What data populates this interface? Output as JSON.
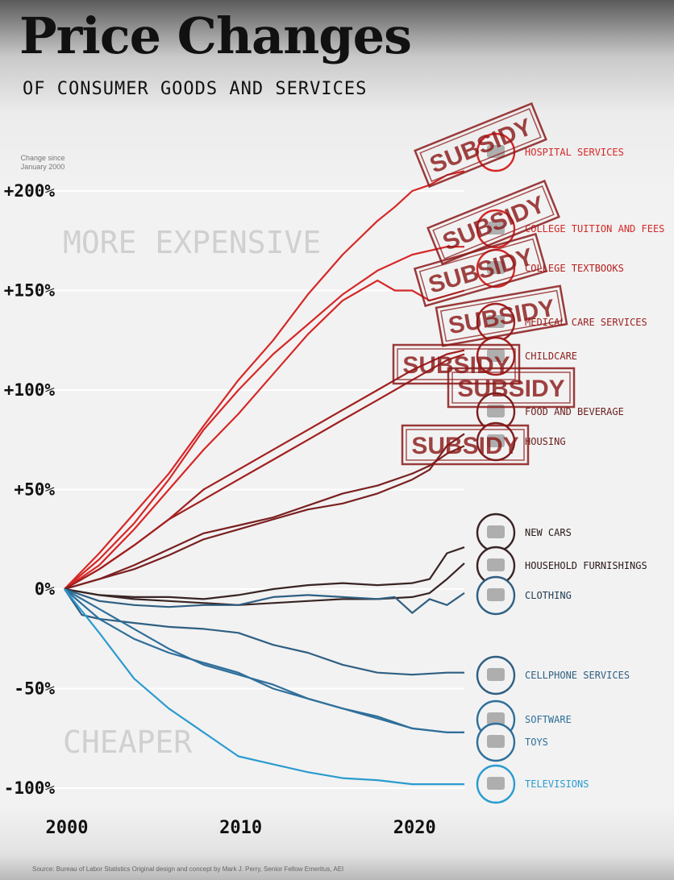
{
  "header": {
    "title": "Price Changes",
    "subtitle": "OF CONSUMER GOODS AND SERVICES",
    "axis_note": "Change since January 2000"
  },
  "footer": {
    "source": "Source: Bureau of Labor Statistics     Original design and concept by Mark J. Perry, Senior Fellow Emeritus, AEI"
  },
  "colors": {
    "hot": "#d62828",
    "warm": "#8b1e1e",
    "dark": "#3a2424",
    "cool": "#2f5f82",
    "cold": "#2a9bd0",
    "stamp": "#8b1a1a"
  },
  "chart_data": {
    "type": "line",
    "title": "Price Changes",
    "subtitle": "OF CONSUMER GOODS AND SERVICES",
    "ylabel": "Change since January 2000",
    "xlim": [
      2000,
      2023
    ],
    "ylim": [
      -100,
      200
    ],
    "x_ticks": [
      2000,
      2010,
      2020
    ],
    "x_tick_labels": [
      "2000",
      "2010",
      "2020"
    ],
    "y_ticks": [
      200,
      150,
      100,
      50,
      0,
      -50,
      -100
    ],
    "y_tick_labels": [
      "+200%",
      "+150%",
      "+100%",
      "+50%",
      "0%",
      "-50%",
      "-100%"
    ],
    "zone_labels": {
      "upper": "MORE EXPENSIVE",
      "lower": "CHEAPER"
    },
    "grid": true,
    "series": [
      {
        "name": "HOSPITAL SERVICES",
        "color": "#d62828",
        "icon": "hospital-icon",
        "stamp": "SUBSIDY",
        "x": [
          2000,
          2002,
          2004,
          2006,
          2008,
          2010,
          2012,
          2014,
          2016,
          2018,
          2019,
          2020,
          2021,
          2022,
          2023
        ],
        "y": [
          0,
          18,
          38,
          58,
          82,
          105,
          125,
          148,
          168,
          185,
          192,
          200,
          203,
          208,
          210
        ]
      },
      {
        "name": "COLLEGE TUITION AND FEES",
        "color": "#d62828",
        "icon": "graduation-cap-icon",
        "stamp": "SUBSIDY",
        "x": [
          2000,
          2002,
          2004,
          2006,
          2008,
          2010,
          2012,
          2014,
          2016,
          2018,
          2020,
          2022,
          2023
        ],
        "y": [
          0,
          15,
          33,
          55,
          80,
          100,
          118,
          133,
          148,
          160,
          168,
          172,
          172
        ]
      },
      {
        "name": "COLLEGE TEXTBOOKS",
        "color": "#d62828",
        "icon": "textbook-icon",
        "stamp": "SUBSIDY",
        "x": [
          2000,
          2002,
          2004,
          2006,
          2008,
          2010,
          2012,
          2014,
          2016,
          2017,
          2018,
          2019,
          2020,
          2021,
          2023
        ],
        "y": [
          0,
          12,
          30,
          50,
          70,
          88,
          108,
          128,
          145,
          150,
          155,
          150,
          150,
          145,
          150
        ]
      },
      {
        "name": "MEDICAL CARE SERVICES",
        "color": "#a31f1f",
        "icon": "medical-kit-icon",
        "stamp": "SUBSIDY",
        "x": [
          2000,
          2002,
          2004,
          2006,
          2008,
          2010,
          2012,
          2014,
          2016,
          2018,
          2020,
          2022,
          2023
        ],
        "y": [
          0,
          10,
          22,
          35,
          50,
          60,
          70,
          80,
          90,
          100,
          110,
          118,
          120
        ]
      },
      {
        "name": "CHILDCARE",
        "color": "#a31f1f",
        "icon": "baby-stroller-icon",
        "stamp": "SUBSIDY",
        "x": [
          2000,
          2002,
          2004,
          2006,
          2008,
          2010,
          2012,
          2014,
          2016,
          2018,
          2020,
          2022,
          2023
        ],
        "y": [
          0,
          10,
          22,
          35,
          45,
          55,
          65,
          75,
          85,
          95,
          105,
          115,
          118
        ]
      },
      {
        "name": "FOOD AND BEVERAGE",
        "color": "#7a2020",
        "icon": "food-icon",
        "stamp": "SUBSIDY",
        "x": [
          2000,
          2002,
          2004,
          2006,
          2008,
          2010,
          2012,
          2014,
          2016,
          2018,
          2020,
          2021,
          2022,
          2023
        ],
        "y": [
          0,
          5,
          10,
          17,
          25,
          30,
          35,
          40,
          43,
          48,
          55,
          60,
          72,
          78
        ]
      },
      {
        "name": "HOUSING",
        "color": "#7a2020",
        "icon": "house-icon",
        "stamp": "SUBSIDY",
        "x": [
          2000,
          2002,
          2004,
          2006,
          2008,
          2010,
          2012,
          2014,
          2016,
          2018,
          2020,
          2021,
          2022,
          2023
        ],
        "y": [
          0,
          5,
          12,
          20,
          28,
          32,
          36,
          42,
          48,
          52,
          58,
          62,
          68,
          72
        ]
      },
      {
        "name": "NEW CARS",
        "color": "#3a2424",
        "icon": "car-icon",
        "x": [
          2000,
          2002,
          2004,
          2006,
          2008,
          2010,
          2012,
          2014,
          2016,
          2018,
          2020,
          2021,
          2022,
          2023
        ],
        "y": [
          0,
          -3,
          -4,
          -4,
          -5,
          -3,
          0,
          2,
          3,
          2,
          3,
          5,
          18,
          21
        ]
      },
      {
        "name": "HOUSEHOLD FURNISHINGS",
        "color": "#3a2424",
        "icon": "sofa-icon",
        "x": [
          2000,
          2002,
          2004,
          2006,
          2008,
          2010,
          2012,
          2014,
          2016,
          2018,
          2020,
          2021,
          2022,
          2023
        ],
        "y": [
          0,
          -3,
          -5,
          -6,
          -7,
          -8,
          -7,
          -6,
          -5,
          -5,
          -4,
          -2,
          5,
          13
        ]
      },
      {
        "name": "CLOTHING",
        "color": "#2f5f82",
        "icon": "shirt-icon",
        "x": [
          2000,
          2002,
          2004,
          2006,
          2008,
          2010,
          2012,
          2014,
          2016,
          2018,
          2019,
          2020,
          2021,
          2022,
          2023
        ],
        "y": [
          0,
          -6,
          -8,
          -9,
          -8,
          -8,
          -4,
          -3,
          -4,
          -5,
          -4,
          -12,
          -5,
          -8,
          -2
        ]
      },
      {
        "name": "CELLPHONE SERVICES",
        "color": "#2f5f82",
        "icon": "cellphone-icon",
        "x": [
          2000,
          2001,
          2002,
          2004,
          2006,
          2008,
          2010,
          2012,
          2014,
          2016,
          2018,
          2020,
          2022,
          2023
        ],
        "y": [
          0,
          -13,
          -15,
          -17,
          -19,
          -20,
          -22,
          -28,
          -32,
          -38,
          -42,
          -43,
          -42,
          -42
        ]
      },
      {
        "name": "SOFTWARE",
        "color": "#2f6f9a",
        "icon": "software-icon",
        "x": [
          2000,
          2002,
          2004,
          2006,
          2008,
          2010,
          2012,
          2014,
          2016,
          2018,
          2020,
          2022,
          2023
        ],
        "y": [
          0,
          -15,
          -25,
          -32,
          -37,
          -42,
          -50,
          -55,
          -60,
          -65,
          -70,
          -72,
          -72
        ]
      },
      {
        "name": "TOYS",
        "color": "#2f6f9a",
        "icon": "toy-robot-icon",
        "x": [
          2000,
          2002,
          2004,
          2006,
          2008,
          2010,
          2012,
          2014,
          2016,
          2018,
          2020,
          2022,
          2023
        ],
        "y": [
          0,
          -10,
          -20,
          -30,
          -38,
          -43,
          -48,
          -55,
          -60,
          -64,
          -70,
          -72,
          -72
        ]
      },
      {
        "name": "TELEVISIONS",
        "color": "#2a9bd0",
        "icon": "television-icon",
        "x": [
          2000,
          2002,
          2004,
          2006,
          2008,
          2010,
          2012,
          2014,
          2016,
          2018,
          2020,
          2022,
          2023
        ],
        "y": [
          0,
          -22,
          -45,
          -60,
          -72,
          -84,
          -88,
          -92,
          -95,
          -96,
          -98,
          -98,
          -98
        ]
      }
    ],
    "labels": [
      {
        "series": "HOSPITAL SERVICES",
        "text": "HOSPITAL SERVICES",
        "color": "#d62828"
      },
      {
        "series": "COLLEGE TUITION AND FEES",
        "text": "COLLEGE TUITION AND FEES",
        "color": "#d62828"
      },
      {
        "series": "COLLEGE TEXTBOOKS",
        "text": "COLLEGE TEXTBOOKS",
        "color": "#b71f1f"
      },
      {
        "series": "MEDICAL CARE SERVICES",
        "text": "MEDICAL CARE SERVICES",
        "color": "#9c1e1e"
      },
      {
        "series": "CHILDCARE",
        "text": "CHILDCARE",
        "color": "#8b1e1e"
      },
      {
        "series": "FOOD AND BEVERAGE",
        "text": "FOOD AND BEVERAGE",
        "color": "#6b1f1f"
      },
      {
        "series": "HOUSING",
        "text": "HOUSING",
        "color": "#6b1f1f"
      },
      {
        "series": "NEW CARS",
        "text": "NEW CARS",
        "color": "#2a1a1a"
      },
      {
        "series": "HOUSEHOLD FURNISHINGS",
        "text": "HOUSEHOLD FURNISHINGS",
        "color": "#2a1a1a"
      },
      {
        "series": "CLOTHING",
        "text": "CLOTHING",
        "color": "#1f3b52"
      },
      {
        "series": "CELLPHONE SERVICES",
        "text": "CELLPHONE SERVICES",
        "color": "#2f5f82"
      },
      {
        "series": "SOFTWARE",
        "text": "SOFTWARE",
        "color": "#2f6f9a"
      },
      {
        "series": "TOYS",
        "text": "TOYS",
        "color": "#2f6f9a"
      },
      {
        "series": "TELEVISIONS",
        "text": "TELEVISIONS",
        "color": "#2a9bd0"
      }
    ]
  }
}
